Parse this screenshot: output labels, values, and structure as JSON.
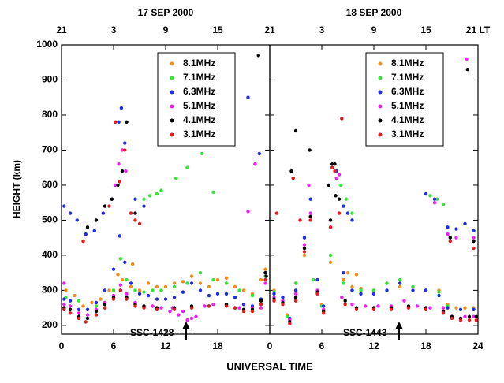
{
  "chart_data": [
    {
      "type": "scatter",
      "title": "17 SEP 2000",
      "ylabel": "HEIGHT (km)",
      "xlabel": "UNIVERSAL TIME",
      "xlim": [
        0,
        24
      ],
      "ylim": [
        175,
        1000
      ],
      "xticks": [
        0,
        6,
        12,
        18
      ],
      "x2ticks": [
        {
          "value": 0,
          "label": "21"
        },
        {
          "value": 6,
          "label": "3"
        },
        {
          "value": 12,
          "label": "9"
        },
        {
          "value": 18,
          "label": "15"
        },
        {
          "value": 24,
          "label": "21"
        }
      ],
      "yticks": [
        200,
        300,
        400,
        500,
        600,
        700,
        800,
        900,
        1000
      ],
      "annotations": [
        {
          "text": "SSC-1428"
        }
      ],
      "series": [
        {
          "name": "8.1MHz",
          "color": "#f28c1c",
          "x": [
            0.5,
            1.5,
            2.5,
            3.5,
            4.5,
            5.5,
            6.5,
            7,
            8,
            9,
            10,
            11,
            12,
            13,
            14,
            15,
            16,
            17,
            18,
            19,
            20,
            21,
            22,
            23,
            23.5,
            8.2
          ],
          "values": [
            300,
            285,
            255,
            265,
            275,
            300,
            345,
            330,
            310,
            300,
            320,
            310,
            310,
            320,
            325,
            340,
            320,
            310,
            330,
            335,
            310,
            300,
            290,
            330,
            360,
            375
          ]
        },
        {
          "name": "7.1MHz",
          "color": "#33e633",
          "x": [
            0.5,
            2,
            3,
            4,
            5,
            6,
            6.8,
            7.5,
            8.5,
            9.5,
            10.5,
            11.5,
            13,
            14.5,
            16,
            17.5,
            19,
            20.5,
            22,
            23.5,
            9.5,
            10.2,
            11,
            11.5,
            13.2,
            14.5,
            16.2,
            17.5
          ],
          "values": [
            280,
            270,
            245,
            255,
            265,
            300,
            390,
            330,
            300,
            295,
            300,
            300,
            310,
            320,
            350,
            330,
            320,
            300,
            285,
            340,
            560,
            570,
            575,
            585,
            620,
            650,
            690,
            580
          ]
        },
        {
          "name": "6.3MHz",
          "color": "#1f2ee6",
          "x": [
            0.3,
            1,
            2,
            3,
            4,
            5,
            6,
            6.7,
            7.3,
            8,
            9,
            10,
            11,
            12,
            13,
            14,
            15,
            16,
            17,
            18,
            19,
            20,
            21,
            22,
            23,
            23.5,
            0.3,
            1,
            1.8,
            2.8,
            3.8,
            4.8,
            5.8,
            6.6,
            6.9,
            7.3,
            8.5,
            9.5,
            21.5,
            22.8
          ],
          "values": [
            275,
            270,
            245,
            245,
            265,
            300,
            360,
            455,
            380,
            320,
            290,
            285,
            275,
            275,
            280,
            295,
            320,
            300,
            285,
            290,
            290,
            280,
            260,
            255,
            275,
            350,
            540,
            520,
            500,
            460,
            470,
            520,
            560,
            780,
            820,
            720,
            560,
            540,
            850,
            690
          ]
        },
        {
          "name": "5.1MHz",
          "color": "#f01ef0",
          "x": [
            0.3,
            1,
            2,
            3,
            4,
            5,
            6,
            6.8,
            7.5,
            8.5,
            9.5,
            10.5,
            11.5,
            12.5,
            13.5,
            14.5,
            15.5,
            16.5,
            17.5,
            19,
            20.5,
            22,
            23,
            23.5,
            0.3,
            6.2,
            6.6,
            7,
            7.4,
            12.8,
            14,
            15,
            21.5,
            22.3
          ],
          "values": [
            260,
            255,
            235,
            230,
            245,
            265,
            285,
            315,
            290,
            265,
            255,
            255,
            250,
            240,
            230,
            215,
            225,
            255,
            260,
            260,
            250,
            250,
            250,
            320,
            320,
            600,
            660,
            700,
            640,
            250,
            240,
            220,
            525,
            660
          ]
        },
        {
          "name": "4.1MHz",
          "color": "#000000",
          "x": [
            0.3,
            1,
            2,
            3,
            4,
            5,
            6,
            6.8,
            7.5,
            8.5,
            9.5,
            11,
            13,
            15,
            17,
            19,
            20,
            21,
            22,
            23,
            23.5,
            3,
            4,
            5,
            5.8,
            6.5,
            7,
            7.5,
            8.5,
            22.7,
            23.6
          ],
          "values": [
            250,
            245,
            225,
            220,
            240,
            260,
            280,
            300,
            280,
            260,
            255,
            250,
            250,
            255,
            255,
            260,
            250,
            245,
            245,
            270,
            350,
            480,
            500,
            540,
            560,
            600,
            640,
            780,
            520,
            970,
            340
          ]
        },
        {
          "name": "3.1MHz",
          "color": "#e61c1c",
          "x": [
            0.3,
            1,
            2,
            2.8,
            4,
            5,
            6,
            6.8,
            7.5,
            8.5,
            9.5,
            11,
            13,
            15,
            17,
            19,
            20,
            21,
            22,
            23,
            23.5,
            2.5,
            5.5,
            6.2,
            6.7,
            7.3,
            8,
            8.5,
            9
          ],
          "values": [
            245,
            235,
            220,
            210,
            230,
            250,
            275,
            300,
            275,
            255,
            250,
            245,
            245,
            250,
            255,
            255,
            250,
            240,
            240,
            260,
            330,
            440,
            540,
            780,
            610,
            700,
            520,
            500,
            490
          ]
        }
      ]
    },
    {
      "type": "scatter",
      "title": "18 SEP 2000",
      "xlim": [
        0,
        24
      ],
      "ylim": [
        175,
        1000
      ],
      "xticks": [
        0,
        6,
        12,
        18,
        24
      ],
      "x2ticks": [
        {
          "value": 6,
          "label": "3"
        },
        {
          "value": 12,
          "label": "9"
        },
        {
          "value": 18,
          "label": "15"
        },
        {
          "value": 24,
          "label": "21 LT"
        }
      ],
      "annotations": [
        {
          "text": "SSC-1443"
        }
      ],
      "series": [
        {
          "name": "8.1MHz",
          "color": "#f28c1c",
          "x": [
            0.5,
            2,
            3,
            4,
            5,
            6,
            7,
            8.5,
            9.5,
            10.5,
            12,
            13.5,
            15,
            16.5,
            18,
            19.5,
            20.5,
            21.5,
            22.5,
            23.5,
            9,
            10
          ],
          "values": [
            300,
            230,
            320,
            400,
            330,
            260,
            380,
            330,
            310,
            305,
            300,
            320,
            310,
            310,
            300,
            300,
            260,
            250,
            250,
            250,
            350,
            345
          ]
        },
        {
          "name": "7.1MHz",
          "color": "#33e633",
          "x": [
            0.5,
            2,
            3,
            4,
            5,
            6,
            7,
            8.5,
            9.5,
            10.5,
            12,
            13.5,
            15,
            16.5,
            18,
            19.5,
            20.5,
            22,
            23.5,
            8.2,
            8.8,
            9.5,
            18.5,
            19.3,
            20
          ],
          "values": [
            295,
            225,
            320,
            420,
            330,
            255,
            400,
            320,
            300,
            300,
            300,
            320,
            330,
            310,
            300,
            295,
            255,
            245,
            245,
            600,
            560,
            520,
            570,
            560,
            545
          ]
        },
        {
          "name": "6.3MHz",
          "color": "#1f2ee6",
          "x": [
            0.5,
            1.5,
            2.3,
            3,
            4,
            4.7,
            5.5,
            6.2,
            7,
            7.7,
            8.5,
            9.5,
            10.5,
            12,
            13.5,
            15,
            16.5,
            18,
            19.5,
            20.5,
            22,
            23.5,
            8.5,
            9,
            9.5,
            18,
            19,
            20.5,
            21.5,
            22.5,
            23.5
          ],
          "values": [
            290,
            280,
            220,
            300,
            450,
            560,
            330,
            255,
            500,
            640,
            350,
            300,
            290,
            290,
            300,
            320,
            300,
            300,
            285,
            250,
            245,
            245,
            540,
            520,
            500,
            575,
            560,
            480,
            475,
            490,
            470
          ]
        },
        {
          "name": "5.1MHz",
          "color": "#f01ef0",
          "x": [
            0.5,
            1.5,
            2.3,
            3,
            4,
            4.7,
            5.5,
            6.2,
            7,
            7.7,
            8.3,
            9.5,
            11,
            12.5,
            14,
            15.5,
            17,
            18.5,
            20,
            21,
            22.5,
            23.5,
            4.5,
            8,
            19,
            20.5,
            21.5,
            22.7,
            23.5
          ],
          "values": [
            280,
            270,
            215,
            290,
            430,
            520,
            300,
            245,
            480,
            620,
            280,
            260,
            255,
            255,
            255,
            270,
            255,
            250,
            250,
            225,
            225,
            225,
            600,
            630,
            550,
            460,
            450,
            960,
            450
          ]
        },
        {
          "name": "4.1MHz",
          "color": "#000000",
          "x": [
            0.5,
            1.5,
            2.3,
            3,
            4,
            4.7,
            5.5,
            6.2,
            7,
            7.5,
            8,
            8.7,
            10,
            12,
            14,
            16,
            18,
            20,
            21,
            22,
            23,
            23.8,
            2.5,
            3,
            4.6,
            6.8,
            7.2,
            7.6,
            20.8,
            22.8,
            23.5
          ],
          "values": [
            275,
            265,
            210,
            280,
            420,
            510,
            295,
            240,
            500,
            660,
            560,
            270,
            250,
            250,
            250,
            255,
            250,
            240,
            225,
            220,
            225,
            225,
            640,
            755,
            700,
            600,
            660,
            570,
            450,
            930,
            440
          ]
        },
        {
          "name": "3.1MHz",
          "color": "#e61c1c",
          "x": [
            0.5,
            1.5,
            2.3,
            3,
            4,
            4.7,
            5.5,
            6.2,
            7,
            7.5,
            8,
            8.7,
            10,
            12,
            14,
            16,
            18,
            20,
            21,
            22,
            23,
            23.8,
            0.8,
            2.7,
            3.5,
            7.2,
            8.3,
            20.8,
            23.5
          ],
          "values": [
            270,
            260,
            205,
            270,
            410,
            500,
            290,
            235,
            480,
            640,
            520,
            260,
            245,
            245,
            245,
            250,
            245,
            235,
            220,
            215,
            215,
            215,
            520,
            620,
            500,
            650,
            790,
            440,
            420
          ]
        }
      ]
    }
  ]
}
